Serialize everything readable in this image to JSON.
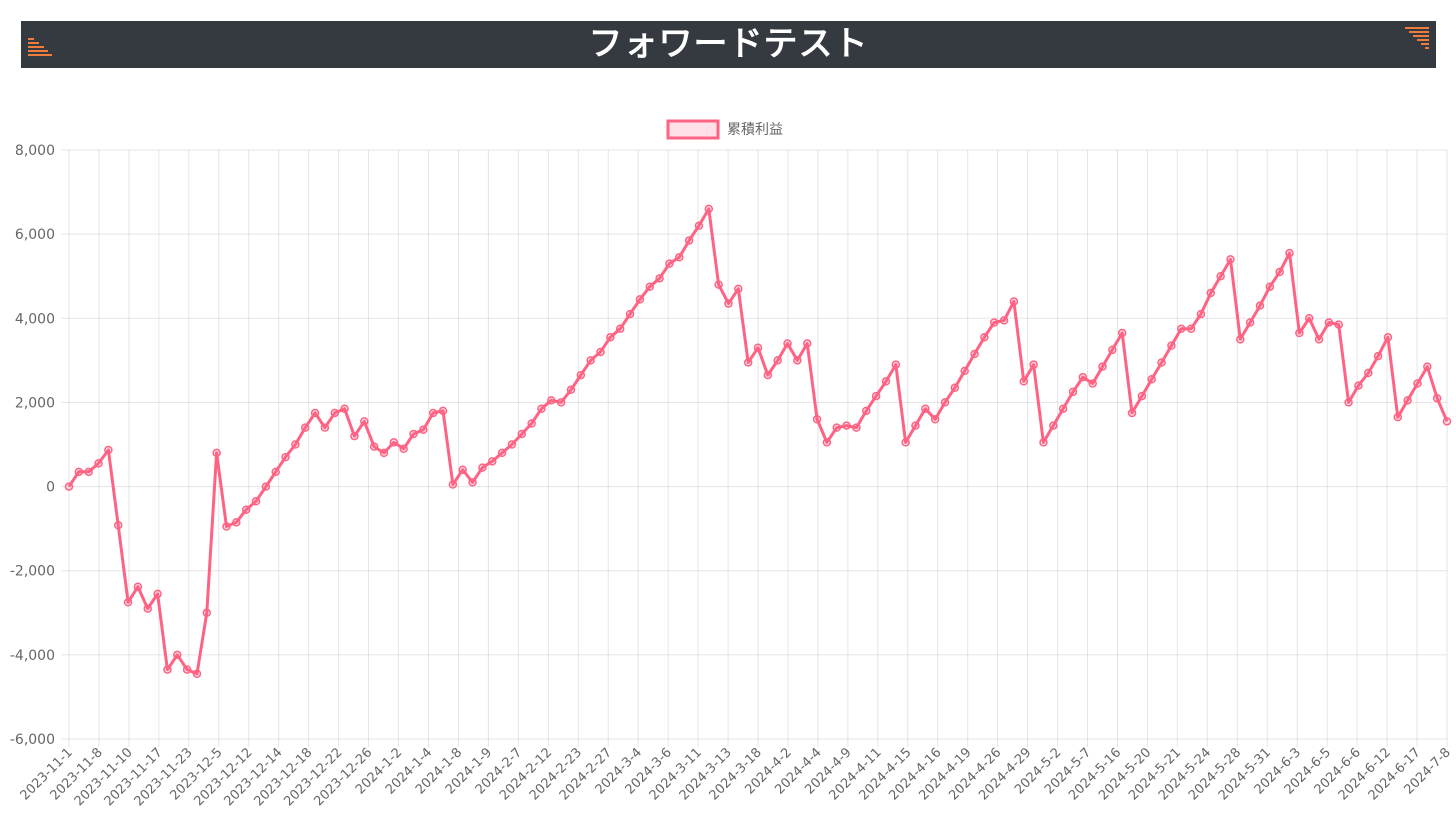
{
  "header": {
    "title": "フォワードテスト",
    "left_icon": "sort-ascending-icon",
    "right_icon": "sort-descending-icon",
    "accent_color": "#f07b3f"
  },
  "chart_data": {
    "type": "line",
    "legend": "累積利益",
    "line_color": "#ff6384",
    "fill_color": "rgba(255,99,132,0.2)",
    "ylim": [
      -6000,
      8000
    ],
    "y_ticks": [
      8000,
      6000,
      4000,
      2000,
      0,
      -2000,
      -4000,
      -6000
    ],
    "y_tick_labels": [
      "8,000",
      "6,000",
      "4,000",
      "2,000",
      "0",
      "-2,000",
      "-4,000",
      "-6,000"
    ],
    "x_tick_labels": [
      "2023-11-1",
      "2023-11-8",
      "2023-11-10",
      "2023-11-17",
      "2023-11-23",
      "2023-12-5",
      "2023-12-12",
      "2023-12-14",
      "2023-12-18",
      "2023-12-22",
      "2023-12-26",
      "2024-1-2",
      "2024-1-4",
      "2024-1-8",
      "2024-1-9",
      "2024-2-7",
      "2024-2-12",
      "2024-2-23",
      "2024-2-27",
      "2024-3-4",
      "2024-3-6",
      "2024-3-11",
      "2024-3-13",
      "2024-3-18",
      "2024-4-2",
      "2024-4-4",
      "2024-4-9",
      "2024-4-11",
      "2024-4-15",
      "2024-4-16",
      "2024-4-19",
      "2024-4-26",
      "2024-4-29",
      "2024-5-2",
      "2024-5-7",
      "2024-5-16",
      "2024-5-20",
      "2024-5-21",
      "2024-5-24",
      "2024-5-28",
      "2024-5-31",
      "2024-6-3",
      "2024-6-5",
      "2024-6-6",
      "2024-6-12",
      "2024-6-17",
      "2024-7-8"
    ],
    "values": [
      0,
      350,
      350,
      550,
      870,
      -920,
      -2750,
      -2380,
      -2900,
      -2550,
      -4350,
      -4000,
      -4350,
      -4450,
      -3000,
      800,
      -950,
      -850,
      -550,
      -350,
      0,
      350,
      700,
      1000,
      1400,
      1750,
      1400,
      1750,
      1850,
      1200,
      1550,
      950,
      800,
      1050,
      900,
      1250,
      1350,
      1750,
      1800,
      50,
      400,
      100,
      450,
      600,
      800,
      1000,
      1250,
      1500,
      1850,
      2050,
      2000,
      2300,
      2650,
      3000,
      3200,
      3550,
      3750,
      4100,
      4450,
      4750,
      4950,
      5300,
      5450,
      5850,
      6200,
      6600,
      4800,
      4350,
      4700,
      2950,
      3300,
      2650,
      3000,
      3400,
      3000,
      3400,
      1600,
      1050,
      1400,
      1450,
      1400,
      1800,
      2150,
      2500,
      2900,
      1050,
      1450,
      1850,
      1600,
      2000,
      2350,
      2750,
      3150,
      3550,
      3900,
      3950,
      4400,
      2500,
      2900,
      1050,
      1450,
      1850,
      2250,
      2600,
      2450,
      2850,
      3250,
      3650,
      1750,
      2150,
      2550,
      2950,
      3350,
      3750,
      3750,
      4100,
      4600,
      5000,
      5400,
      3500,
      3900,
      4300,
      4750,
      5100,
      5550,
      3650,
      4000,
      3500,
      3900,
      3850,
      2000,
      2400,
      2700,
      3100,
      3550,
      1650,
      2050,
      2450,
      2850,
      2100,
      1550
    ]
  }
}
